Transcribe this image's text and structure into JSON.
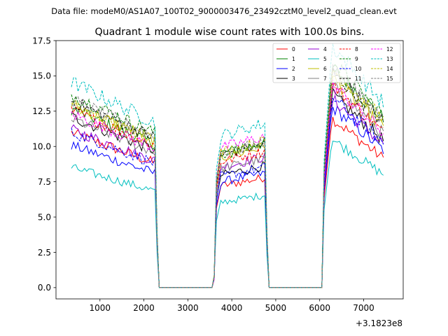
{
  "chart_data": {
    "type": "line",
    "suptitle": "Data file: modeM0/AS1A07_100T02_9000003476_23492cztM0_level2_quad_clean.evt",
    "title": "Quadrant 1 module wise count rates with 100.0s bins.",
    "xlabel": "",
    "ylabel": "",
    "x_offset_label": "+3.1823e8",
    "xlim": [
      0,
      7900
    ],
    "ylim": [
      -0.8,
      17.5
    ],
    "xticks": [
      1000,
      2000,
      3000,
      4000,
      5000,
      6000,
      7000
    ],
    "yticks": [
      0.0,
      2.5,
      5.0,
      7.5,
      10.0,
      12.5,
      15.0,
      17.5
    ],
    "ytick_labels": [
      "0.0",
      "2.5",
      "5.0",
      "7.5",
      "10.0",
      "12.5",
      "15.0",
      "17.5"
    ],
    "grid": false,
    "legend_placement": "top-right",
    "legend_columns": 4,
    "segments": [
      {
        "x_start": 350,
        "x_end": 2250
      },
      {
        "x_start": 3750,
        "x_end": 4750
      },
      {
        "x_start": 6250,
        "x_end": 7450
      }
    ],
    "gaps": [
      {
        "x_start": 2350,
        "x_end": 3550
      },
      {
        "x_start": 4850,
        "x_end": 6050
      }
    ],
    "series": [
      {
        "name": "0",
        "color": "#ff0000",
        "dash": "solid",
        "levels": [
          9.8,
          7.5,
          10.5
        ]
      },
      {
        "name": "1",
        "color": "#008000",
        "dash": "solid",
        "levels": [
          11.3,
          9.9,
          13.7
        ]
      },
      {
        "name": "2",
        "color": "#0000ff",
        "dash": "solid",
        "levels": [
          9.0,
          7.8,
          11.2
        ]
      },
      {
        "name": "3",
        "color": "#000000",
        "dash": "solid",
        "levels": [
          10.8,
          8.3,
          12.0
        ]
      },
      {
        "name": "4",
        "color": "#9400d3",
        "dash": "solid",
        "levels": [
          10.0,
          8.9,
          11.7
        ]
      },
      {
        "name": "5",
        "color": "#00bfbf",
        "dash": "solid",
        "levels": [
          7.6,
          6.3,
          9.2
        ]
      },
      {
        "name": "6",
        "color": "#bfbf00",
        "dash": "solid",
        "levels": [
          11.6,
          9.6,
          13.0
        ]
      },
      {
        "name": "7",
        "color": "#808080",
        "dash": "solid",
        "levels": [
          10.7,
          8.8,
          12.5
        ]
      },
      {
        "name": "8",
        "color": "#ff0000",
        "dash": "dashed",
        "levels": [
          11.2,
          9.3,
          12.6
        ]
      },
      {
        "name": "9",
        "color": "#008000",
        "dash": "dashed",
        "levels": [
          12.2,
          9.8,
          14.0
        ]
      },
      {
        "name": "10",
        "color": "#0000ff",
        "dash": "dashed",
        "levels": [
          9.8,
          8.2,
          11.8
        ]
      },
      {
        "name": "11",
        "color": "#000000",
        "dash": "dashed",
        "levels": [
          11.8,
          9.8,
          13.4
        ]
      },
      {
        "name": "12",
        "color": "#ff00ff",
        "dash": "dashed",
        "levels": [
          11.0,
          10.3,
          12.6
        ]
      },
      {
        "name": "13",
        "color": "#00bfbf",
        "dash": "dashed",
        "levels": [
          13.0,
          11.2,
          15.0
        ]
      },
      {
        "name": "14",
        "color": "#bfbf00",
        "dash": "dashed",
        "levels": [
          11.5,
          10.0,
          13.6
        ]
      },
      {
        "name": "15",
        "color": "#808080",
        "dash": "dashed",
        "levels": [
          11.9,
          9.9,
          13.7
        ]
      }
    ]
  }
}
